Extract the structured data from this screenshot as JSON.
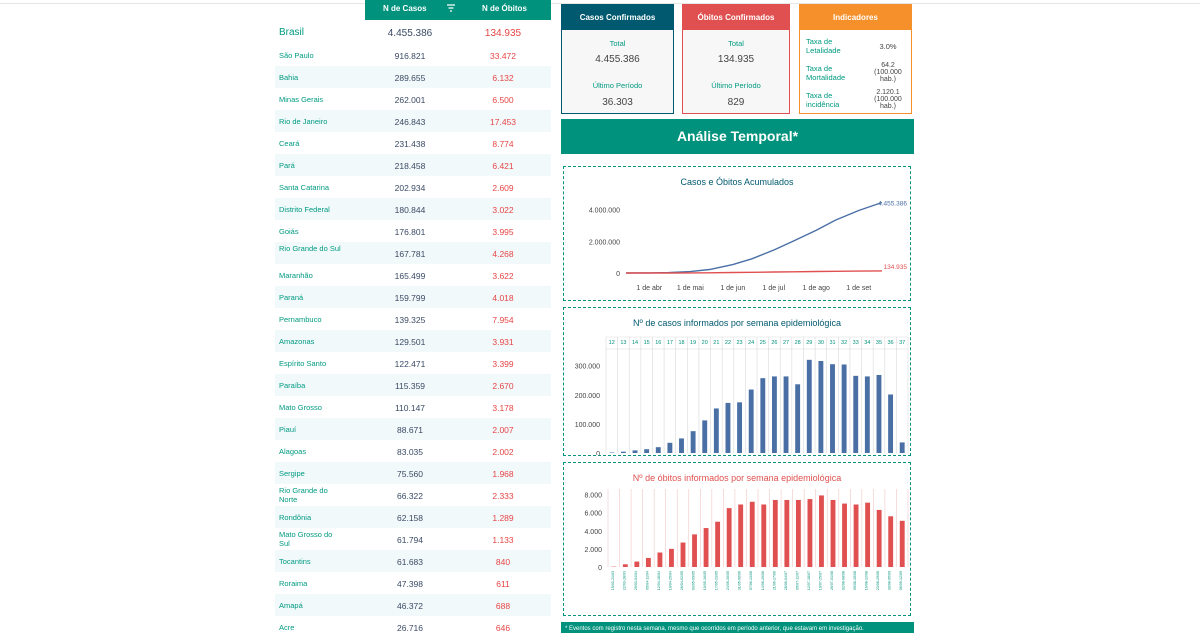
{
  "table": {
    "header_cases": "N de Casos",
    "header_deaths": "N de Óbitos",
    "brasil": {
      "name": "Brasil",
      "cases": "4.455.386",
      "deaths": "134.935"
    },
    "rows": [
      {
        "name": "São Paulo",
        "cases": "916.821",
        "deaths": "33.472"
      },
      {
        "name": "Bahia",
        "cases": "289.655",
        "deaths": "6.132"
      },
      {
        "name": "Minas Gerais",
        "cases": "262.001",
        "deaths": "6.500"
      },
      {
        "name": "Rio de Janeiro",
        "cases": "246.843",
        "deaths": "17.453"
      },
      {
        "name": "Ceará",
        "cases": "231.438",
        "deaths": "8.774"
      },
      {
        "name": "Pará",
        "cases": "218.458",
        "deaths": "6.421"
      },
      {
        "name": "Santa Catarina",
        "cases": "202.934",
        "deaths": "2.609"
      },
      {
        "name": "Distrito Federal",
        "cases": "180.844",
        "deaths": "3.022"
      },
      {
        "name": "Goiás",
        "cases": "176.801",
        "deaths": "3.995"
      },
      {
        "name": "Rio Grande do Sul",
        "cases": "167.781",
        "deaths": "4.268"
      },
      {
        "name": "Maranhão",
        "cases": "165.499",
        "deaths": "3.622"
      },
      {
        "name": "Paraná",
        "cases": "159.799",
        "deaths": "4.018"
      },
      {
        "name": "Pernambuco",
        "cases": "139.325",
        "deaths": "7.954"
      },
      {
        "name": "Amazonas",
        "cases": "129.501",
        "deaths": "3.931"
      },
      {
        "name": "Espírito Santo",
        "cases": "122.471",
        "deaths": "3.399"
      },
      {
        "name": "Paraíba",
        "cases": "115.359",
        "deaths": "2.670"
      },
      {
        "name": "Mato Grosso",
        "cases": "110.147",
        "deaths": "3.178"
      },
      {
        "name": "Piauí",
        "cases": "88.671",
        "deaths": "2.007"
      },
      {
        "name": "Alagoas",
        "cases": "83.035",
        "deaths": "2.002"
      },
      {
        "name": "Sergipe",
        "cases": "75.560",
        "deaths": "1.968"
      },
      {
        "name": "Rio Grande do Norte",
        "cases": "66.322",
        "deaths": "2.333"
      },
      {
        "name": "Rondônia",
        "cases": "62.158",
        "deaths": "1.289"
      },
      {
        "name": "Mato Grosso do Sul",
        "cases": "61.794",
        "deaths": "1.133"
      },
      {
        "name": "Tocantins",
        "cases": "61.683",
        "deaths": "840"
      },
      {
        "name": "Roraima",
        "cases": "47.398",
        "deaths": "611"
      },
      {
        "name": "Amapá",
        "cases": "46.372",
        "deaths": "688"
      },
      {
        "name": "Acre",
        "cases": "26.716",
        "deaths": "646"
      }
    ]
  },
  "cards": {
    "confirmed": {
      "title": "Casos Confirmados",
      "total_label": "Total",
      "total": "4.455.386",
      "period_label": "Último Período",
      "period": "36.303"
    },
    "deaths": {
      "title": "Óbitos Confirmados",
      "total_label": "Total",
      "total": "134.935",
      "period_label": "Último Período",
      "period": "829"
    },
    "indicators": {
      "title": "Indicadores",
      "items": [
        {
          "label": "Taxa de Letalidade",
          "value": "3.0%"
        },
        {
          "label": "Taxa de Mortalidade",
          "value": "64.2 (100.000 hab.)"
        },
        {
          "label": "Taxa de incidência",
          "value": "2.120.1 (100.000 hab.)"
        }
      ]
    }
  },
  "banner": "Análise Temporal*",
  "footer": "* Eventos com registro nesta semana, mesmo que ocorridos em período anterior, que estavam em investigação.",
  "colors": {
    "teal": "#00927c",
    "blue": "#4a6fa5",
    "red": "#e05050",
    "orange": "#f5902a"
  },
  "chart_data": [
    {
      "type": "line",
      "title": "Casos e Óbitos Acumulados",
      "x_ticks": [
        "1 de abr",
        "1 de mai",
        "1 de jun",
        "1 de jul",
        "1 de ago",
        "1 de set"
      ],
      "y_ticks": [
        "4.000.000",
        "2.000.000",
        "0"
      ],
      "ylim": [
        0,
        4800000
      ],
      "x_dates": [
        "2020-03-15",
        "2020-04-01",
        "2020-04-15",
        "2020-05-01",
        "2020-05-15",
        "2020-06-01",
        "2020-06-15",
        "2020-07-01",
        "2020-07-15",
        "2020-08-01",
        "2020-08-15",
        "2020-09-01",
        "2020-09-18"
      ],
      "series": [
        {
          "values": [
            0,
            6000,
            25000,
            90000,
            220000,
            530000,
            900000,
            1450000,
            2010000,
            2700000,
            3340000,
            3950000,
            4455386
          ],
          "end_label": "4.455.386",
          "color": "#4a6fa5"
        },
        {
          "values": [
            0,
            240,
            1700,
            6300,
            15000,
            30000,
            44000,
            61000,
            76000,
            93000,
            107000,
            121000,
            134935
          ],
          "end_label": "134.935",
          "color": "#e05050"
        }
      ]
    },
    {
      "type": "bar",
      "title": "Nº de casos informados por semana epidemiológica",
      "categories": [
        "12",
        "13",
        "14",
        "15",
        "16",
        "17",
        "18",
        "19",
        "20",
        "21",
        "22",
        "23",
        "24",
        "25",
        "26",
        "27",
        "28",
        "29",
        "30",
        "31",
        "32",
        "33",
        "34",
        "35",
        "36",
        "37"
      ],
      "y_ticks": [
        "300.000",
        "200.000",
        "100.000",
        "0"
      ],
      "ylim": [
        0,
        340000
      ],
      "values": [
        1500,
        4500,
        9000,
        13000,
        20000,
        35000,
        50000,
        75000,
        112000,
        153000,
        172000,
        174000,
        218000,
        257000,
        263000,
        263000,
        236000,
        320000,
        316000,
        305000,
        304000,
        265000,
        263000,
        268000,
        201000,
        36303
      ],
      "color": "#4a6fa5"
    },
    {
      "type": "bar",
      "title": "Nº de óbitos informados por semana epidemiológica",
      "categories": [
        "15/03-21/03",
        "22/03-28/03",
        "29/03-04/04",
        "05/04-11/04",
        "12/04-18/04",
        "19/04-25/04",
        "26/04-02/05",
        "03/05-09/05",
        "10/05-16/05",
        "17/05-23/05",
        "24/05-30/05",
        "31/05-06/06",
        "07/06-13/06",
        "14/06-20/06",
        "21/06-27/06",
        "28/06-04/07",
        "05/07-11/07",
        "12/07-18/07",
        "19/07-25/07",
        "26/07-01/08",
        "02/08-08/08",
        "09/08-15/08",
        "16/08-22/08",
        "23/08-29/08",
        "30/08-05/09",
        "06/09-12/09"
      ],
      "y_ticks": [
        "8.000",
        "6.000",
        "4.000",
        "2.000",
        "0"
      ],
      "ylim": [
        0,
        8500
      ],
      "values": [
        40,
        300,
        600,
        1000,
        1600,
        2000,
        2700,
        3600,
        4300,
        5000,
        6500,
        6900,
        7200,
        6900,
        7400,
        7400,
        7400,
        7500,
        7900,
        7400,
        7000,
        6900,
        7100,
        6300,
        5600,
        5100
      ],
      "color": "#e05050"
    }
  ]
}
